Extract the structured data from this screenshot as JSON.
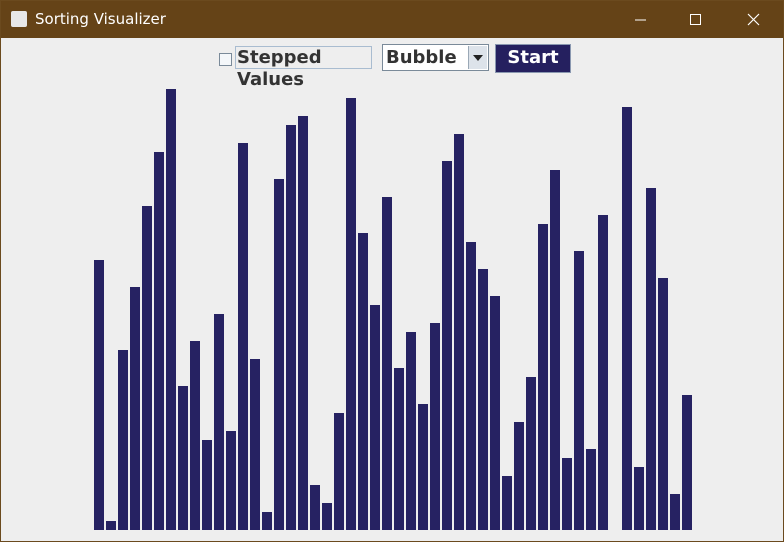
{
  "window": {
    "title": "Sorting Visualizer"
  },
  "controls": {
    "checkbox_label": "Stepped Values",
    "algorithm": "Bubble",
    "button": "Start"
  },
  "bars": {
    "color": "#262262",
    "values": [
      270,
      9,
      180,
      243,
      324,
      378,
      441,
      144,
      189,
      90,
      216,
      99,
      387,
      171,
      18,
      351,
      405,
      414,
      45,
      27,
      117,
      432,
      297,
      225,
      333,
      162,
      198,
      126,
      207,
      369,
      396,
      288,
      261,
      234,
      54,
      108,
      153,
      306,
      360,
      72,
      279,
      81,
      315,
      0,
      423,
      63,
      342,
      252,
      36,
      135
    ]
  }
}
